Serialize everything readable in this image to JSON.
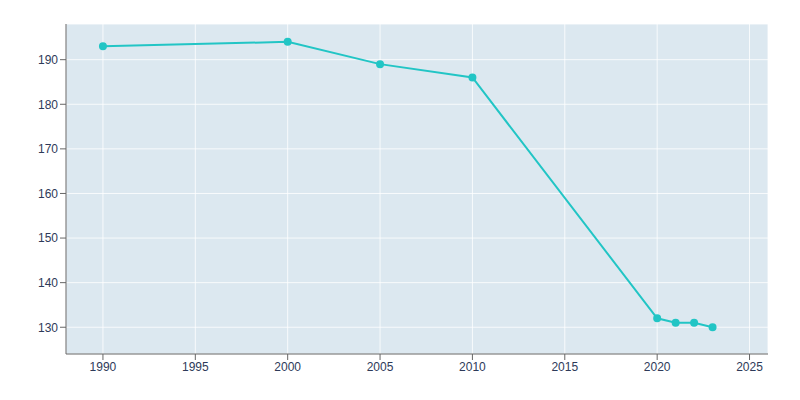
{
  "chart_data": {
    "type": "line",
    "x": [
      1990,
      2000,
      2005,
      2010,
      2020,
      2021,
      2022,
      2023
    ],
    "values": [
      193,
      194,
      189,
      186,
      132,
      131,
      131,
      130
    ],
    "color": "#22c5c5",
    "marker": "circle",
    "xlim": [
      1988,
      2026
    ],
    "ylim": [
      124,
      198
    ],
    "xticks": [
      1990,
      1995,
      2000,
      2005,
      2010,
      2015,
      2020,
      2025
    ],
    "yticks": [
      130,
      140,
      150,
      160,
      170,
      180,
      190
    ],
    "grid": true
  }
}
